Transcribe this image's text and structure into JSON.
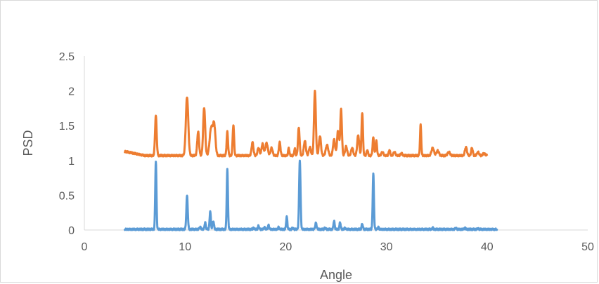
{
  "chart_data": {
    "type": "line",
    "title": "",
    "xlabel": "Angle",
    "ylabel": "PSD",
    "xlim": [
      0,
      50
    ],
    "ylim": [
      0,
      2.5
    ],
    "xticks": [
      "0",
      "10",
      "20",
      "30",
      "40",
      "50"
    ],
    "yticks": [
      "0",
      "0.5",
      "1",
      "1.5",
      "2",
      "2.5"
    ],
    "grid": false,
    "legend": "none",
    "series": [
      {
        "color": "#ed7d31",
        "baseline": 1.07,
        "x_start": 4,
        "x_end": 40,
        "start_value": 1.13,
        "peaks": [
          [
            7.1,
            1.64,
            0.08
          ],
          [
            10.2,
            1.91,
            0.12
          ],
          [
            11.3,
            1.41,
            0.09
          ],
          [
            11.9,
            1.76,
            0.1
          ],
          [
            12.6,
            1.47,
            0.15
          ],
          [
            12.9,
            1.49,
            0.12
          ],
          [
            14.2,
            1.41,
            0.07
          ],
          [
            14.8,
            1.51,
            0.07
          ],
          [
            16.7,
            1.26,
            0.09
          ],
          [
            17.3,
            1.18,
            0.1
          ],
          [
            17.7,
            1.24,
            0.1
          ],
          [
            18.1,
            1.25,
            0.12
          ],
          [
            18.6,
            1.18,
            0.1
          ],
          [
            19.4,
            1.26,
            0.08
          ],
          [
            20.3,
            1.18,
            0.06
          ],
          [
            20.9,
            1.17,
            0.06
          ],
          [
            21.3,
            1.47,
            0.08
          ],
          [
            21.9,
            1.28,
            0.1
          ],
          [
            22.4,
            1.19,
            0.1
          ],
          [
            22.9,
            2.0,
            0.09
          ],
          [
            23.4,
            1.35,
            0.1
          ],
          [
            24.1,
            1.22,
            0.12
          ],
          [
            24.8,
            1.3,
            0.1
          ],
          [
            25.2,
            1.43,
            0.1
          ],
          [
            25.5,
            1.73,
            0.08
          ],
          [
            26.0,
            1.2,
            0.1
          ],
          [
            26.6,
            1.18,
            0.1
          ],
          [
            27.2,
            1.36,
            0.1
          ],
          [
            27.6,
            1.69,
            0.07
          ],
          [
            28.1,
            1.15,
            0.07
          ],
          [
            28.7,
            1.33,
            0.07
          ],
          [
            29.0,
            1.28,
            0.07
          ],
          [
            29.6,
            1.12,
            0.1
          ],
          [
            30.3,
            1.15,
            0.07
          ],
          [
            30.8,
            1.12,
            0.1
          ],
          [
            31.5,
            1.1,
            0.1
          ],
          [
            33.4,
            1.51,
            0.06
          ],
          [
            34.6,
            1.18,
            0.12
          ],
          [
            35.1,
            1.14,
            0.12
          ],
          [
            36.2,
            1.12,
            0.12
          ],
          [
            37.9,
            1.19,
            0.1
          ],
          [
            38.5,
            1.18,
            0.08
          ],
          [
            39.1,
            1.12,
            0.1
          ],
          [
            39.7,
            1.1,
            0.12
          ]
        ]
      },
      {
        "color": "#5b9bd5",
        "baseline": 0.01,
        "x_start": 4,
        "x_end": 41,
        "start_value": 0.01,
        "peaks": [
          [
            7.1,
            0.99,
            0.06
          ],
          [
            10.2,
            0.49,
            0.07
          ],
          [
            11.5,
            0.04,
            0.08
          ],
          [
            12.0,
            0.11,
            0.06
          ],
          [
            12.5,
            0.27,
            0.06
          ],
          [
            12.8,
            0.13,
            0.07
          ],
          [
            14.2,
            0.87,
            0.06
          ],
          [
            16.8,
            0.03,
            0.06
          ],
          [
            17.3,
            0.06,
            0.06
          ],
          [
            17.9,
            0.04,
            0.06
          ],
          [
            18.3,
            0.07,
            0.06
          ],
          [
            19.3,
            0.04,
            0.06
          ],
          [
            20.1,
            0.19,
            0.06
          ],
          [
            20.7,
            0.03,
            0.06
          ],
          [
            21.4,
            1.0,
            0.07
          ],
          [
            23.0,
            0.1,
            0.07
          ],
          [
            23.9,
            0.03,
            0.06
          ],
          [
            24.8,
            0.13,
            0.06
          ],
          [
            25.4,
            0.11,
            0.06
          ],
          [
            25.9,
            0.03,
            0.06
          ],
          [
            27.6,
            0.09,
            0.06
          ],
          [
            28.7,
            0.81,
            0.06
          ],
          [
            29.2,
            0.04,
            0.06
          ],
          [
            34.6,
            0.03,
            0.06
          ],
          [
            36.9,
            0.03,
            0.06
          ],
          [
            37.8,
            0.03,
            0.06
          ],
          [
            39.1,
            0.02,
            0.06
          ]
        ]
      }
    ]
  }
}
